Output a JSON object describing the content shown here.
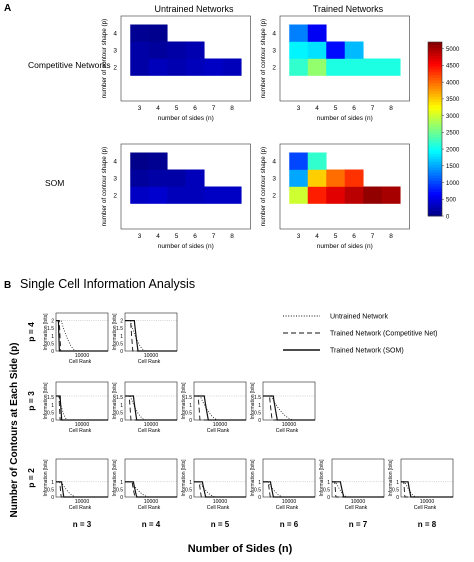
{
  "panel_a": {
    "label": "A",
    "col_titles": [
      "Untrained Networks",
      "Trained Networks"
    ],
    "row_labels": [
      "Competitive Networks",
      "SOM"
    ],
    "xlabel": "number of sides (n)",
    "ylabel": "number of contour shape (p)",
    "x_ticks": [
      "3",
      "4",
      "5",
      "6",
      "7",
      "8"
    ],
    "y_ticks": [
      "4",
      "3",
      "2"
    ],
    "colorbar": {
      "ticks": [
        "5000",
        "4500",
        "4000",
        "3500",
        "3000",
        "2500",
        "2000",
        "1500",
        "1000",
        "500",
        "0"
      ],
      "min": 0,
      "max": 5200,
      "colormap": "jet"
    }
  },
  "panel_b": {
    "label": "B",
    "title": "Single Cell Information Analysis",
    "row_labels": [
      "p = 4",
      "p = 3",
      "p = 2"
    ],
    "col_labels": [
      "n = 3",
      "n = 4",
      "n = 5",
      "n = 6",
      "n = 7",
      "n = 8"
    ],
    "ylabel": "Number of Contours at Each Side (p)",
    "xlabel": "Number of Sides (n)",
    "subplot_xlabel": "Cell Rank",
    "subplot_ylabel": "Information [bits]",
    "x_tick": "10000",
    "y_ticks": [
      "2",
      "1.5",
      "1",
      "0.5",
      "0"
    ],
    "legend": [
      {
        "label": "Untrained Network",
        "style": "dotted"
      },
      {
        "label": "Trained Network (Competitive Net)",
        "style": "dashed"
      },
      {
        "label": "Trained Network (SOM)",
        "style": "solid"
      }
    ]
  },
  "chart_data": [
    {
      "type": "heatmap",
      "id": "untrained-competitive",
      "x": [
        3,
        4,
        5,
        6,
        7,
        8
      ],
      "y": [
        2,
        3,
        4
      ],
      "values": [
        [
          200,
          300,
          250,
          300,
          350,
          300
        ],
        [
          200,
          150,
          200,
          250,
          null,
          null
        ],
        [
          100,
          80,
          null,
          null,
          null,
          null
        ]
      ]
    },
    {
      "type": "heatmap",
      "id": "trained-competitive",
      "x": [
        3,
        4,
        5,
        6,
        7,
        8
      ],
      "y": [
        2,
        3,
        4
      ],
      "values": [
        [
          2200,
          2700,
          2100,
          2100,
          2100,
          2100
        ],
        [
          1900,
          1800,
          700,
          1600,
          null,
          null
        ],
        [
          1300,
          600,
          null,
          null,
          null,
          null
        ]
      ]
    },
    {
      "type": "heatmap",
      "id": "untrained-som",
      "x": [
        3,
        4,
        5,
        6,
        7,
        8
      ],
      "y": [
        2,
        3,
        4
      ],
      "values": [
        [
          350,
          400,
          300,
          300,
          350,
          350
        ],
        [
          150,
          200,
          200,
          300,
          null,
          null
        ],
        [
          60,
          90,
          null,
          null,
          null,
          null
        ]
      ]
    },
    {
      "type": "heatmap",
      "id": "trained-som",
      "x": [
        3,
        4,
        5,
        6,
        7,
        8
      ],
      "y": [
        2,
        3,
        4
      ],
      "values": [
        [
          3000,
          4400,
          4700,
          4900,
          5100,
          5000
        ],
        [
          1500,
          3500,
          4000,
          4300,
          null,
          null
        ],
        [
          1000,
          2200,
          null,
          null,
          null,
          null
        ]
      ]
    },
    {
      "type": "line",
      "id": "single-cell-information",
      "xlabel": "Cell Rank",
      "ylabel": "Information [bits]",
      "xlim": [
        0,
        20000
      ],
      "ylim": [
        0,
        2.5
      ],
      "panels": [
        {
          "p": 4,
          "n": 3,
          "max_info": 2.0,
          "untrained_end": 8000,
          "competitive_end": 1800,
          "som_end": 1300
        },
        {
          "p": 4,
          "n": 4,
          "max_info": 2.0,
          "untrained_end": 8000,
          "competitive_end": 3000,
          "som_end": 5000
        },
        {
          "p": 3,
          "n": 3,
          "max_info": 1.58,
          "untrained_end": 4500,
          "competitive_end": 1600,
          "som_end": 2200
        },
        {
          "p": 3,
          "n": 4,
          "max_info": 1.58,
          "untrained_end": 8000,
          "competitive_end": 2300,
          "som_end": 4500
        },
        {
          "p": 3,
          "n": 5,
          "max_info": 1.58,
          "untrained_end": 9500,
          "competitive_end": 2300,
          "som_end": 5500
        },
        {
          "p": 3,
          "n": 6,
          "max_info": 1.58,
          "untrained_end": 12000,
          "competitive_end": 3500,
          "som_end": 5500
        },
        {
          "p": 2,
          "n": 3,
          "max_info": 1.0,
          "untrained_end": 8000,
          "competitive_end": 2000,
          "som_end": 3000
        },
        {
          "p": 2,
          "n": 4,
          "max_info": 1.0,
          "untrained_end": 9500,
          "competitive_end": 3800,
          "som_end": 4500
        },
        {
          "p": 2,
          "n": 5,
          "max_info": 1.0,
          "untrained_end": 8500,
          "competitive_end": 2800,
          "som_end": 4500
        },
        {
          "p": 2,
          "n": 6,
          "max_info": 1.0,
          "untrained_end": 8000,
          "competitive_end": 2800,
          "som_end": 4000
        },
        {
          "p": 2,
          "n": 7,
          "max_info": 1.0,
          "untrained_end": 6000,
          "competitive_end": 1500,
          "som_end": 4500
        },
        {
          "p": 2,
          "n": 8,
          "max_info": 1.0,
          "untrained_end": 6000,
          "competitive_end": 1500,
          "som_end": 3800
        }
      ]
    }
  ]
}
